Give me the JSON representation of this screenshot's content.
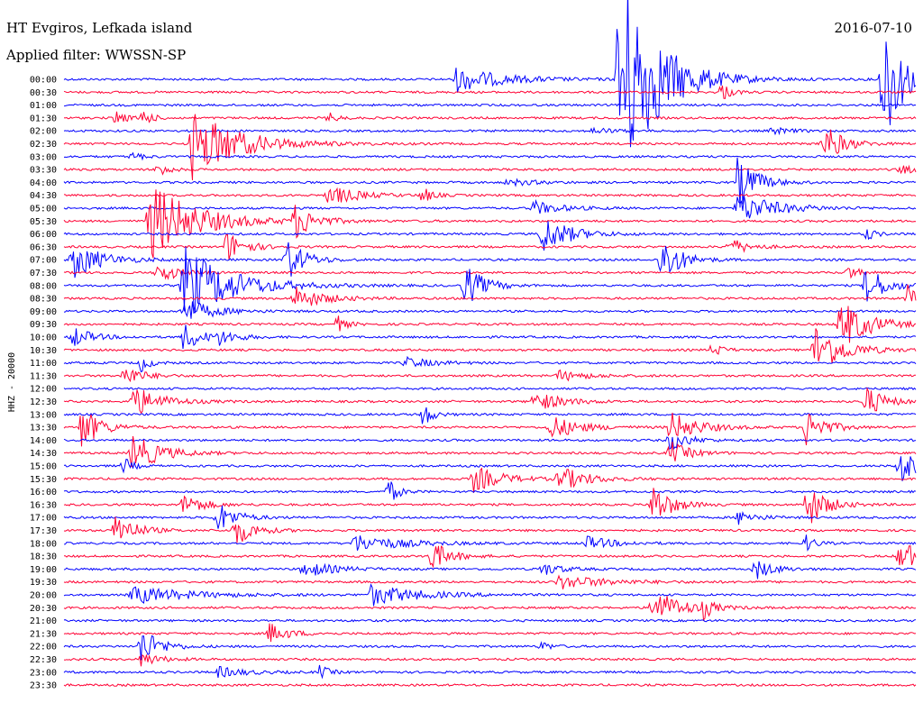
{
  "header": {
    "station": "HT Evgiros, Lefkada island",
    "date": "2016-07-10",
    "filter": "Applied filter: WWSSN-SP"
  },
  "colors": {
    "blue": "#0000ff",
    "red": "#ff0033"
  },
  "chart_data": {
    "type": "helicorder",
    "channel_label": "HHZ - 20000",
    "row_minutes": 30,
    "rows": [
      {
        "time": "00:00",
        "color": "blue",
        "events": [
          [
            0.46,
            14,
            0.05
          ],
          [
            0.65,
            140,
            0.04
          ],
          [
            0.96,
            85,
            0.02
          ]
        ]
      },
      {
        "time": "00:30",
        "color": "red",
        "events": [
          [
            0.77,
            12,
            0.01
          ]
        ]
      },
      {
        "time": "01:00",
        "color": "blue",
        "events": []
      },
      {
        "time": "01:30",
        "color": "red",
        "events": [
          [
            0.06,
            10,
            0.01
          ],
          [
            0.09,
            12,
            0.01
          ],
          [
            0.31,
            6,
            0.01
          ]
        ]
      },
      {
        "time": "02:00",
        "color": "blue",
        "events": [
          [
            0.62,
            4,
            0.02
          ],
          [
            0.83,
            4,
            0.02
          ]
        ]
      },
      {
        "time": "02:30",
        "color": "red",
        "events": [
          [
            0.15,
            40,
            0.05
          ],
          [
            0.89,
            25,
            0.02
          ]
        ]
      },
      {
        "time": "03:00",
        "color": "blue",
        "events": [
          [
            0.08,
            6,
            0.01
          ]
        ]
      },
      {
        "time": "03:30",
        "color": "red",
        "events": [
          [
            0.11,
            10,
            0.01
          ],
          [
            0.98,
            4,
            0.03
          ]
        ]
      },
      {
        "time": "04:00",
        "color": "blue",
        "events": [
          [
            0.79,
            32,
            0.02
          ],
          [
            0.52,
            4,
            0.03
          ]
        ]
      },
      {
        "time": "04:30",
        "color": "red",
        "events": [
          [
            0.31,
            12,
            0.03
          ],
          [
            0.42,
            10,
            0.01
          ]
        ]
      },
      {
        "time": "05:00",
        "color": "blue",
        "events": [
          [
            0.79,
            18,
            0.04
          ],
          [
            0.55,
            8,
            0.03
          ]
        ]
      },
      {
        "time": "05:30",
        "color": "red",
        "events": [
          [
            0.1,
            45,
            0.05
          ],
          [
            0.27,
            20,
            0.02
          ]
        ]
      },
      {
        "time": "06:00",
        "color": "blue",
        "events": [
          [
            0.56,
            22,
            0.03
          ],
          [
            0.94,
            8,
            0.01
          ]
        ]
      },
      {
        "time": "06:30",
        "color": "red",
        "events": [
          [
            0.19,
            18,
            0.02
          ],
          [
            0.78,
            10,
            0.02
          ]
        ]
      },
      {
        "time": "07:00",
        "color": "blue",
        "events": [
          [
            0.01,
            22,
            0.03
          ],
          [
            0.26,
            25,
            0.02
          ],
          [
            0.7,
            30,
            0.02
          ]
        ]
      },
      {
        "time": "07:30",
        "color": "red",
        "events": [
          [
            0.11,
            12,
            0.02
          ],
          [
            0.92,
            10,
            0.01
          ]
        ]
      },
      {
        "time": "08:00",
        "color": "blue",
        "events": [
          [
            0.14,
            45,
            0.05
          ],
          [
            0.47,
            25,
            0.02
          ],
          [
            0.94,
            25,
            0.02
          ]
        ]
      },
      {
        "time": "08:30",
        "color": "red",
        "events": [
          [
            0.27,
            14,
            0.03
          ],
          [
            0.99,
            20,
            0.01
          ]
        ]
      },
      {
        "time": "09:00",
        "color": "blue",
        "events": [
          [
            0.14,
            15,
            0.03
          ]
        ]
      },
      {
        "time": "09:30",
        "color": "red",
        "events": [
          [
            0.32,
            10,
            0.01
          ],
          [
            0.91,
            30,
            0.03
          ]
        ]
      },
      {
        "time": "10:00",
        "color": "blue",
        "events": [
          [
            0.01,
            12,
            0.02
          ],
          [
            0.14,
            16,
            0.02
          ],
          [
            0.18,
            8,
            0.02
          ]
        ]
      },
      {
        "time": "10:30",
        "color": "red",
        "events": [
          [
            0.88,
            30,
            0.03
          ],
          [
            0.76,
            10,
            0.01
          ]
        ]
      },
      {
        "time": "11:00",
        "color": "blue",
        "events": [
          [
            0.09,
            10,
            0.01
          ],
          [
            0.4,
            6,
            0.03
          ]
        ]
      },
      {
        "time": "11:30",
        "color": "red",
        "events": [
          [
            0.07,
            12,
            0.02
          ],
          [
            0.58,
            6,
            0.03
          ]
        ]
      },
      {
        "time": "12:00",
        "color": "blue",
        "events": []
      },
      {
        "time": "12:30",
        "color": "red",
        "events": [
          [
            0.08,
            18,
            0.03
          ],
          [
            0.55,
            12,
            0.03
          ],
          [
            0.94,
            18,
            0.02
          ]
        ]
      },
      {
        "time": "13:00",
        "color": "blue",
        "events": [
          [
            0.42,
            16,
            0.01
          ]
        ]
      },
      {
        "time": "13:30",
        "color": "red",
        "events": [
          [
            0.02,
            25,
            0.02
          ],
          [
            0.57,
            14,
            0.03
          ],
          [
            0.71,
            18,
            0.03
          ],
          [
            0.87,
            22,
            0.02
          ]
        ]
      },
      {
        "time": "14:00",
        "color": "blue",
        "events": [
          [
            0.71,
            12,
            0.02
          ]
        ]
      },
      {
        "time": "14:30",
        "color": "red",
        "events": [
          [
            0.08,
            22,
            0.03
          ],
          [
            0.71,
            14,
            0.02
          ]
        ]
      },
      {
        "time": "15:00",
        "color": "blue",
        "events": [
          [
            0.07,
            10,
            0.01
          ],
          [
            0.98,
            25,
            0.02
          ]
        ]
      },
      {
        "time": "15:30",
        "color": "red",
        "events": [
          [
            0.48,
            15,
            0.03
          ],
          [
            0.58,
            14,
            0.03
          ]
        ]
      },
      {
        "time": "16:00",
        "color": "blue",
        "events": [
          [
            0.38,
            16,
            0.01
          ]
        ]
      },
      {
        "time": "16:30",
        "color": "red",
        "events": [
          [
            0.14,
            14,
            0.02
          ],
          [
            0.69,
            25,
            0.02
          ],
          [
            0.87,
            28,
            0.02
          ]
        ]
      },
      {
        "time": "17:00",
        "color": "blue",
        "events": [
          [
            0.18,
            18,
            0.02
          ],
          [
            0.79,
            8,
            0.02
          ]
        ]
      },
      {
        "time": "17:30",
        "color": "red",
        "events": [
          [
            0.06,
            22,
            0.02
          ],
          [
            0.2,
            18,
            0.02
          ]
        ]
      },
      {
        "time": "18:00",
        "color": "blue",
        "events": [
          [
            0.34,
            10,
            0.05
          ],
          [
            0.61,
            8,
            0.03
          ],
          [
            0.87,
            10,
            0.01
          ]
        ]
      },
      {
        "time": "18:30",
        "color": "red",
        "events": [
          [
            0.43,
            18,
            0.02
          ],
          [
            0.98,
            22,
            0.02
          ]
        ]
      },
      {
        "time": "19:00",
        "color": "blue",
        "events": [
          [
            0.28,
            10,
            0.03
          ],
          [
            0.56,
            8,
            0.02
          ],
          [
            0.81,
            12,
            0.02
          ]
        ]
      },
      {
        "time": "19:30",
        "color": "red",
        "events": [
          [
            0.58,
            8,
            0.05
          ]
        ]
      },
      {
        "time": "20:00",
        "color": "blue",
        "events": [
          [
            0.08,
            10,
            0.06
          ],
          [
            0.36,
            12,
            0.05
          ]
        ]
      },
      {
        "time": "20:30",
        "color": "red",
        "events": [
          [
            0.69,
            22,
            0.03
          ],
          [
            0.75,
            10,
            0.01
          ]
        ]
      },
      {
        "time": "21:00",
        "color": "blue",
        "events": []
      },
      {
        "time": "21:30",
        "color": "red",
        "events": [
          [
            0.24,
            12,
            0.02
          ]
        ]
      },
      {
        "time": "22:00",
        "color": "blue",
        "events": [
          [
            0.09,
            22,
            0.02
          ],
          [
            0.56,
            6,
            0.01
          ]
        ]
      },
      {
        "time": "22:30",
        "color": "red",
        "events": [
          [
            0.09,
            8,
            0.02
          ]
        ]
      },
      {
        "time": "23:00",
        "color": "blue",
        "events": [
          [
            0.18,
            6,
            0.03
          ],
          [
            0.3,
            8,
            0.01
          ]
        ]
      },
      {
        "time": "23:30",
        "color": "red",
        "events": []
      }
    ]
  }
}
